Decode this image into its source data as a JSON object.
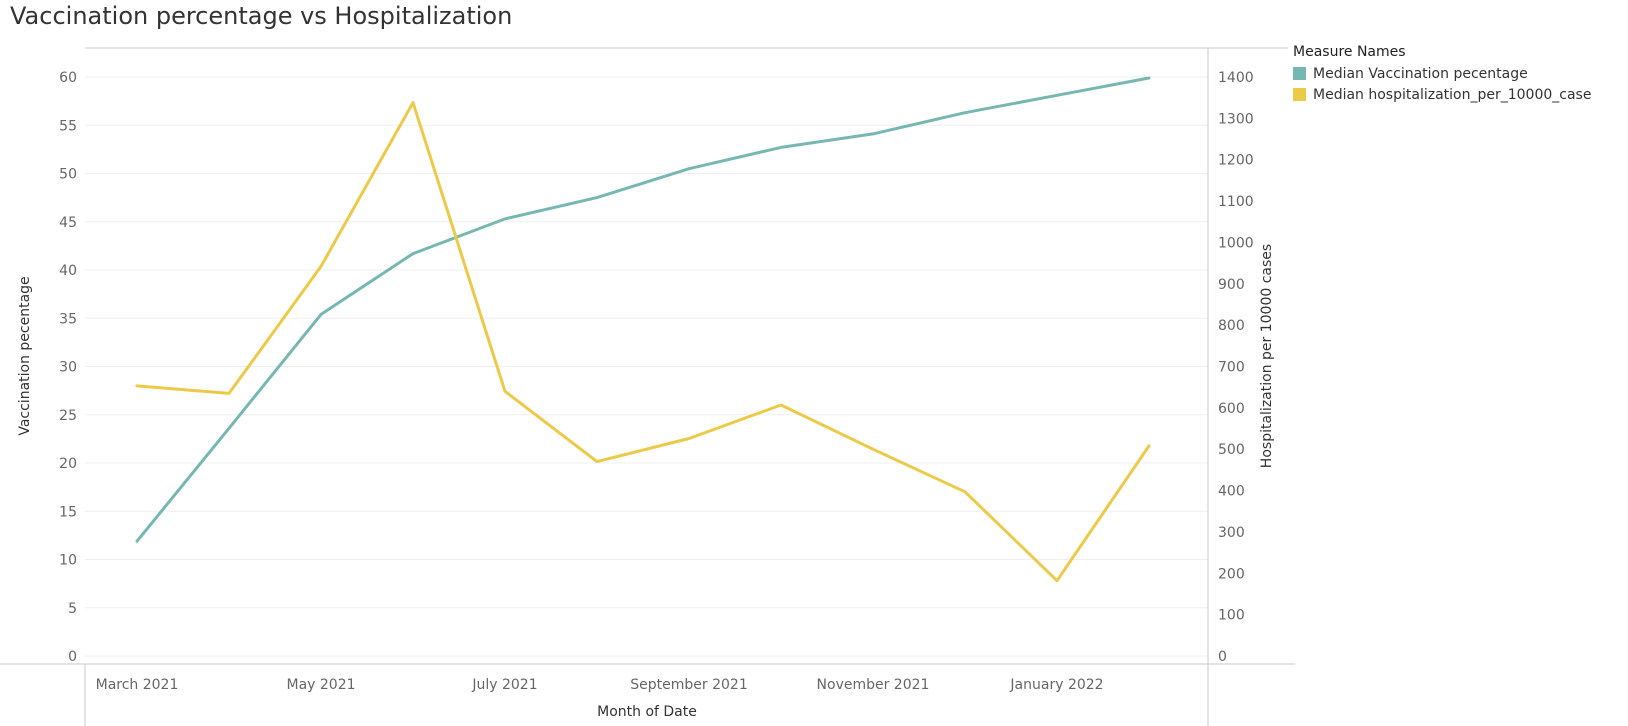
{
  "title": "Vaccination percentage vs Hospitalization",
  "legend": {
    "title": "Measure Names",
    "items": [
      {
        "label": "Median Vaccination pecentage",
        "color": "#76b7b2"
      },
      {
        "label": "Median hospitalization_per_10000_case",
        "color": "#edc948"
      }
    ]
  },
  "chart_data": {
    "type": "line",
    "title": "Vaccination percentage vs Hospitalization",
    "xlabel": "Month of Date",
    "ylabel": "Vaccination pecentage",
    "y2label": "Hospitalization per 10000 cases",
    "x": [
      "2021-03",
      "2021-04",
      "2021-05",
      "2021-06",
      "2021-07",
      "2021-08",
      "2021-09",
      "2021-10",
      "2021-11",
      "2021-12",
      "2022-01",
      "2022-02"
    ],
    "x_tick_labels": [
      "March 2021",
      "May 2021",
      "July 2021",
      "September 2021",
      "November 2021",
      "January 2022"
    ],
    "x_tick_months": [
      "2021-03",
      "2021-05",
      "2021-07",
      "2021-09",
      "2021-11",
      "2022-01"
    ],
    "ylim": [
      0,
      60
    ],
    "y_ticks": [
      0,
      5,
      10,
      15,
      20,
      25,
      30,
      35,
      40,
      45,
      50,
      55,
      60
    ],
    "y2lim": [
      0,
      1400
    ],
    "y2_ticks": [
      0,
      100,
      200,
      300,
      400,
      500,
      600,
      700,
      800,
      900,
      1000,
      1100,
      1200,
      1300,
      1400
    ],
    "grid": true,
    "legend_position": "top-right",
    "series": [
      {
        "name": "Median Vaccination pecentage",
        "axis": "left",
        "color": "#76b7b2",
        "values": [
          11.9,
          23.6,
          35.4,
          41.7,
          45.3,
          47.5,
          50.5,
          52.7,
          54.1,
          56.3,
          58.1,
          59.9
        ]
      },
      {
        "name": "Median hospitalization_per_10000_case",
        "axis": "right",
        "color": "#edc948",
        "values": [
          653,
          635,
          942,
          1338,
          640,
          470,
          526,
          607,
          500,
          397,
          182,
          508
        ]
      }
    ]
  }
}
